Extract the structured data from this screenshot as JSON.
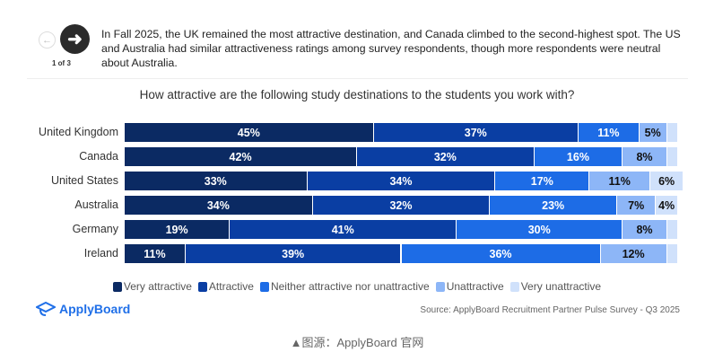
{
  "nav": {
    "prev_icon": "arrow-left-icon",
    "next_icon": "arrow-right-icon",
    "pager": "1 of 3"
  },
  "insight": "In Fall 2025, the UK remained the most attractive destination, and Canada climbed to the second-highest spot. The US and Australia had similar attractiveness ratings among survey respondents, though more respondents were neutral about Australia.",
  "chart_data": {
    "type": "bar",
    "stacked": true,
    "orientation": "horizontal",
    "title": "How attractive are the following study destinations to the students you work with?",
    "categories": [
      "United Kingdom",
      "Canada",
      "United States",
      "Australia",
      "Germany",
      "Ireland"
    ],
    "series": [
      {
        "name": "Very attractive",
        "color": "#0b2a63",
        "values": [
          45,
          42,
          33,
          34,
          19,
          11
        ]
      },
      {
        "name": "Attractive",
        "color": "#0a3ea3",
        "values": [
          37,
          32,
          34,
          32,
          41,
          39
        ]
      },
      {
        "name": "Neither attractive nor unattractive",
        "color": "#1d6ce6",
        "values": [
          11,
          16,
          17,
          23,
          30,
          36
        ]
      },
      {
        "name": "Unattractive",
        "color": "#8db6f7",
        "values": [
          5,
          8,
          11,
          7,
          8,
          12
        ]
      },
      {
        "name": "Very unattractive",
        "color": "#d0e1fb",
        "values": [
          2,
          2,
          6,
          4,
          2,
          2
        ]
      }
    ],
    "xlim": [
      0,
      100
    ],
    "legend_position": "bottom"
  },
  "footer": {
    "logo": "ApplyBoard",
    "source": "Source: ApplyBoard Recruitment Partner Pulse Survey - Q3 2025"
  },
  "caption": "▲图源：ApplyBoard 官网"
}
